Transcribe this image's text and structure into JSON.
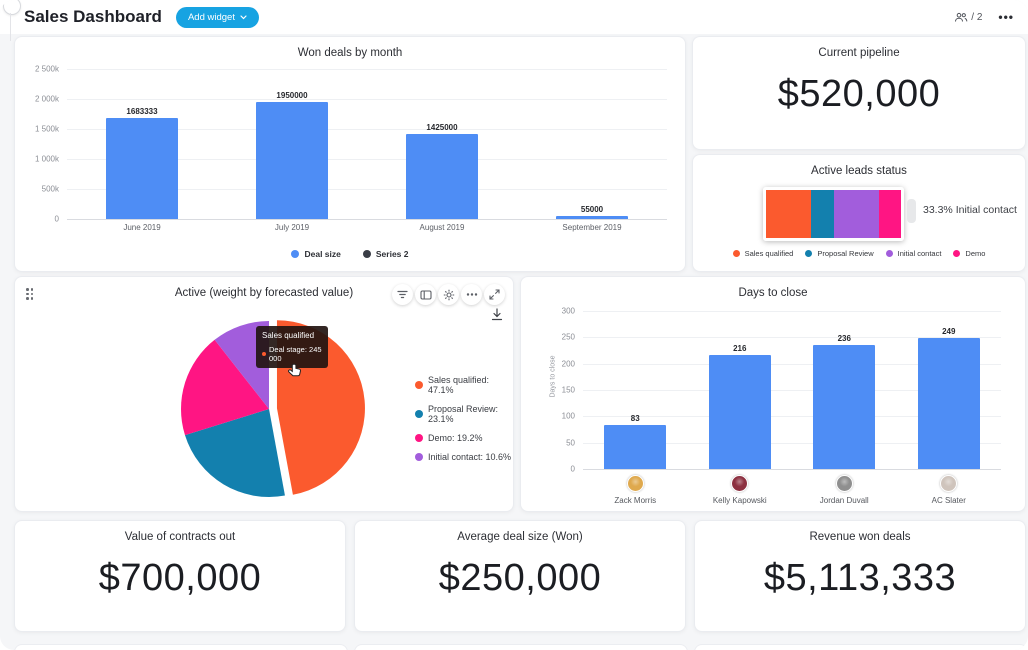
{
  "header": {
    "title": "Sales Dashboard",
    "add_widget": "Add widget",
    "add_widget_color": "#17a3e2",
    "members": "/ 2"
  },
  "widgets": {
    "won_deals": {
      "title": "Won deals by month",
      "chart_data": {
        "type": "bar",
        "categories": [
          "June 2019",
          "July 2019",
          "August 2019",
          "September 2019"
        ],
        "values": [
          1683333,
          1950000,
          1425000,
          55000
        ],
        "value_labels": [
          "1683333",
          "1950000",
          "1425000",
          "55000"
        ],
        "y_ticks": [
          "2 500k",
          "2 000k",
          "1 500k",
          "1 000k",
          "500k",
          "0"
        ],
        "ylim": [
          0,
          2500000
        ],
        "bar_color": "#4e8df5",
        "legend": [
          {
            "label": "Deal size",
            "color": "#4e8df5"
          },
          {
            "label": "Series 2",
            "color": "#3a3d46"
          }
        ]
      }
    },
    "current_pipeline": {
      "title": "Current pipeline",
      "value": "$520,000"
    },
    "active_leads": {
      "title": "Active leads status",
      "annotation": "33.3% Initial contact",
      "chart_data": {
        "type": "bar",
        "stacked": true,
        "segments": [
          {
            "label": "Sales qualified",
            "pct": 33.3,
            "color": "#fb5a2e"
          },
          {
            "label": "Proposal Review",
            "pct": 17.0,
            "color": "#1380ae"
          },
          {
            "label": "Initial contact",
            "pct": 33.3,
            "color": "#a25ddc"
          },
          {
            "label": "Demo",
            "pct": 16.4,
            "color": "#ff1583"
          }
        ]
      },
      "legend": [
        {
          "label": "Sales qualified",
          "color": "#fb5a2e"
        },
        {
          "label": "Proposal Review",
          "color": "#1380ae"
        },
        {
          "label": "Initial contact",
          "color": "#a25ddc"
        },
        {
          "label": "Demo",
          "color": "#ff1583"
        }
      ]
    },
    "active_pie": {
      "title": "Active (weight by forecasted value)",
      "toolbar_icons": [
        "filter-icon",
        "board-layout-icon",
        "settings-icon",
        "more-icon",
        "expand-icon",
        "download-icon"
      ],
      "tooltip": {
        "title": "Sales qualified",
        "line": "Deal stage: 245 000"
      },
      "chart_data": {
        "type": "pie",
        "labels": [
          "Sales qualified",
          "Proposal Review",
          "Demo",
          "Initial contact"
        ],
        "values": [
          47.1,
          23.1,
          19.2,
          10.6
        ],
        "colors": [
          "#fb5a2e",
          "#1380ae",
          "#ff1583",
          "#a25ddc"
        ],
        "explode_index": 0,
        "legend_position": "right"
      },
      "legend": [
        "Sales qualified: 47.1%",
        "Proposal Review: 23.1%",
        "Demo: 19.2%",
        "Initial contact: 10.6%"
      ]
    },
    "days_to_close": {
      "title": "Days to close",
      "chart_data": {
        "type": "bar",
        "categories": [
          "Zack Morris",
          "Kelly Kapowski",
          "Jordan Duvall",
          "AC Slater"
        ],
        "values": [
          83,
          216,
          236,
          249
        ],
        "value_labels": [
          "83",
          "216",
          "236",
          "249"
        ],
        "y_ticks": [
          "300",
          "250",
          "200",
          "150",
          "100",
          "50",
          "0"
        ],
        "ylim": [
          0,
          300
        ],
        "ylabel": "Days to close",
        "bar_color": "#4e8df5"
      },
      "avatar_colors": [
        "#dfa94e",
        "#8c3040",
        "#8f8f8f",
        "#cfc4bc"
      ]
    },
    "stats": [
      {
        "title": "Value of contracts out",
        "value": "$700,000"
      },
      {
        "title": "Average deal size (Won)",
        "value": "$250,000"
      },
      {
        "title": "Revenue won deals",
        "value": "$5,113,333"
      }
    ]
  }
}
